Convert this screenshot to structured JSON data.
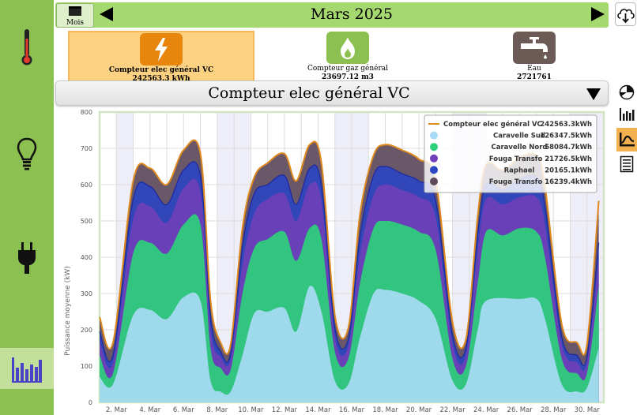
{
  "sidebar": {
    "items": [
      {
        "name": "temperature",
        "icon": "thermometer-icon"
      },
      {
        "name": "lighting",
        "icon": "lightbulb-icon"
      },
      {
        "name": "electricity",
        "icon": "plug-icon"
      },
      {
        "name": "charts",
        "icon": "bar-chart-icon",
        "active": true
      }
    ]
  },
  "header": {
    "period_button_label": "Mois",
    "title": "Mars 2025"
  },
  "meters": [
    {
      "name": "Compteur elec général VC",
      "value": "242563.3 kWh",
      "icon": "lightning-icon",
      "color": "#e8850c",
      "selected": true
    },
    {
      "name": "Compteur gaz général",
      "value": "23697.12 m3",
      "icon": "flame-icon",
      "color": "#8cc152",
      "selected": false
    },
    {
      "name": "Eau",
      "value": "2721761",
      "icon": "faucet-icon",
      "color": "#6b5a55",
      "selected": false
    }
  ],
  "selector": {
    "selected": "Compteur elec général VC"
  },
  "tools": [
    "pie-chart-icon",
    "bar-chart-icon",
    "area-chart-icon",
    "document-icon"
  ],
  "chart_data": {
    "type": "area",
    "stacked": true,
    "ylabel": "Puissance moyenne (kW)",
    "ylim": [
      0,
      800
    ],
    "yticks": [
      0,
      100,
      200,
      300,
      400,
      500,
      600,
      700,
      800
    ],
    "x_day_range": [
      1,
      31
    ],
    "xtick_days": [
      2,
      4,
      6,
      8,
      10,
      12,
      14,
      16,
      18,
      20,
      22,
      24,
      26,
      28,
      30
    ],
    "xtick_labels": [
      "2. Mar",
      "4. Mar",
      "6. Mar",
      "8. Mar",
      "10. Mar",
      "12. Mar",
      "14. Mar",
      "16. Mar",
      "18. Mar",
      "20. Mar",
      "22. Mar",
      "24. Mar",
      "26. Mar",
      "28. Mar",
      "30. Mar"
    ],
    "weekend_bands": [
      [
        2,
        3
      ],
      [
        8,
        10
      ],
      [
        15,
        17
      ],
      [
        22,
        24
      ],
      [
        29,
        31
      ]
    ],
    "grid": true,
    "legend": {
      "placement": "top-right",
      "entries": [
        {
          "name": "Compteur elec général VC",
          "value": "242563.3kWh",
          "color": "#e08a1e",
          "marker": "line"
        },
        {
          "name": "Caravelle Sud",
          "value": "126347.5kWh",
          "color": "#a8daf5",
          "marker": "dot"
        },
        {
          "name": "Caravelle Nord",
          "value": "58084.7kWh",
          "color": "#2dd07a",
          "marker": "dot"
        },
        {
          "name": "Fouga Transfo 2",
          "value": "21726.5kWh",
          "color": "#6f40b8",
          "marker": "dot"
        },
        {
          "name": "Raphael",
          "value": "20165.1kWh",
          "color": "#2c45c0",
          "marker": "dot"
        },
        {
          "name": "Fouga Transfo 1",
          "value": "16239.4kWh",
          "color": "#5d4a5c",
          "marker": "dot"
        }
      ]
    },
    "series_keypoints": [
      {
        "name": "Caravelle Sud",
        "color": "#a8daf5",
        "points": [
          [
            1,
            70
          ],
          [
            1.8,
            50
          ],
          [
            3,
            240
          ],
          [
            4,
            255
          ],
          [
            5,
            230
          ],
          [
            6,
            290
          ],
          [
            7,
            280
          ],
          [
            7.6,
            60
          ],
          [
            8.2,
            30
          ],
          [
            8.8,
            30
          ],
          [
            9.5,
            130
          ],
          [
            10.2,
            245
          ],
          [
            11,
            250
          ],
          [
            12,
            260
          ],
          [
            12.7,
            195
          ],
          [
            13.5,
            320
          ],
          [
            14.2,
            250
          ],
          [
            15,
            60
          ],
          [
            15.8,
            50
          ],
          [
            16.5,
            180
          ],
          [
            17.3,
            300
          ],
          [
            18,
            310
          ],
          [
            19,
            300
          ],
          [
            20,
            280
          ],
          [
            21,
            230
          ],
          [
            22,
            60
          ],
          [
            22.8,
            50
          ],
          [
            23.5,
            200
          ],
          [
            24,
            280
          ],
          [
            26,
            285
          ],
          [
            27,
            285
          ],
          [
            27.5,
            230
          ],
          [
            28.5,
            50
          ],
          [
            29.4,
            30
          ],
          [
            30,
            40
          ],
          [
            30.7,
            150
          ]
        ]
      },
      {
        "name": "Caravelle Nord",
        "color": "#2dd07a",
        "points": [
          [
            1,
            130
          ],
          [
            1.8,
            80
          ],
          [
            3,
            410
          ],
          [
            4,
            440
          ],
          [
            5,
            410
          ],
          [
            6,
            490
          ],
          [
            7,
            490
          ],
          [
            7.6,
            150
          ],
          [
            8.2,
            95
          ],
          [
            8.8,
            90
          ],
          [
            9.5,
            300
          ],
          [
            10.2,
            425
          ],
          [
            11,
            450
          ],
          [
            12,
            470
          ],
          [
            12.7,
            390
          ],
          [
            13.5,
            480
          ],
          [
            14.2,
            450
          ],
          [
            15,
            140
          ],
          [
            15.8,
            120
          ],
          [
            16.5,
            330
          ],
          [
            17.3,
            480
          ],
          [
            18,
            500
          ],
          [
            19,
            490
          ],
          [
            20,
            470
          ],
          [
            21,
            420
          ],
          [
            22,
            120
          ],
          [
            22.8,
            100
          ],
          [
            23.5,
            330
          ],
          [
            24,
            470
          ],
          [
            25,
            460
          ],
          [
            26,
            480
          ],
          [
            27,
            470
          ],
          [
            27.5,
            400
          ],
          [
            28.5,
            120
          ],
          [
            29.4,
            80
          ],
          [
            30,
            80
          ],
          [
            30.7,
            320
          ]
        ]
      },
      {
        "name": "Fouga Transfo 2",
        "color": "#6f40b8",
        "points": [
          [
            1,
            170
          ],
          [
            1.8,
            110
          ],
          [
            3,
            505
          ],
          [
            4,
            540
          ],
          [
            5,
            495
          ],
          [
            6,
            590
          ],
          [
            7,
            580
          ],
          [
            7.6,
            200
          ],
          [
            8.2,
            125
          ],
          [
            8.8,
            120
          ],
          [
            9.5,
            380
          ],
          [
            10.2,
            520
          ],
          [
            11,
            560
          ],
          [
            12,
            575
          ],
          [
            12.7,
            500
          ],
          [
            13.5,
            600
          ],
          [
            14.2,
            555
          ],
          [
            15,
            180
          ],
          [
            15.8,
            155
          ],
          [
            16.5,
            410
          ],
          [
            17.3,
            570
          ],
          [
            18,
            600
          ],
          [
            19,
            585
          ],
          [
            20,
            565
          ],
          [
            21,
            510
          ],
          [
            22,
            160
          ],
          [
            22.8,
            130
          ],
          [
            23.5,
            420
          ],
          [
            24,
            560
          ],
          [
            25,
            545
          ],
          [
            26,
            565
          ],
          [
            27,
            565
          ],
          [
            27.5,
            490
          ],
          [
            28.5,
            160
          ],
          [
            29.4,
            110
          ],
          [
            30,
            110
          ],
          [
            30.7,
            400
          ]
        ]
      },
      {
        "name": "Raphael",
        "color": "#2c45c0",
        "points": [
          [
            1,
            195
          ],
          [
            1.8,
            130
          ],
          [
            3,
            560
          ],
          [
            4,
            595
          ],
          [
            5,
            545
          ],
          [
            6,
            640
          ],
          [
            7,
            625
          ],
          [
            7.6,
            235
          ],
          [
            8.2,
            140
          ],
          [
            8.8,
            135
          ],
          [
            9.5,
            430
          ],
          [
            10.2,
            575
          ],
          [
            11,
            600
          ],
          [
            12,
            625
          ],
          [
            12.7,
            545
          ],
          [
            13.5,
            645
          ],
          [
            14.2,
            600
          ],
          [
            15,
            205
          ],
          [
            15.8,
            175
          ],
          [
            16.5,
            460
          ],
          [
            17.3,
            625
          ],
          [
            18,
            650
          ],
          [
            19,
            630
          ],
          [
            20,
            610
          ],
          [
            21,
            555
          ],
          [
            22,
            185
          ],
          [
            22.8,
            150
          ],
          [
            23.5,
            465
          ],
          [
            24,
            600
          ],
          [
            25,
            585
          ],
          [
            26,
            615
          ],
          [
            27,
            620
          ],
          [
            27.5,
            540
          ],
          [
            28.5,
            180
          ],
          [
            29.4,
            130
          ],
          [
            30,
            125
          ],
          [
            30.7,
            440
          ]
        ]
      },
      {
        "name": "Fouga Transfo 1",
        "color": "#5d4a5c",
        "points": [
          [
            1,
            235
          ],
          [
            1.8,
            165
          ],
          [
            3,
            610
          ],
          [
            4,
            645
          ],
          [
            5,
            600
          ],
          [
            6,
            695
          ],
          [
            7,
            685
          ],
          [
            7.6,
            280
          ],
          [
            8.2,
            165
          ],
          [
            8.8,
            160
          ],
          [
            9.5,
            480
          ],
          [
            10.2,
            620
          ],
          [
            11,
            660
          ],
          [
            12,
            685
          ],
          [
            12.7,
            610
          ],
          [
            13.5,
            710
          ],
          [
            14.2,
            660
          ],
          [
            15,
            240
          ],
          [
            15.8,
            205
          ],
          [
            16.5,
            520
          ],
          [
            17.3,
            680
          ],
          [
            18,
            710
          ],
          [
            19,
            695
          ],
          [
            20,
            670
          ],
          [
            21,
            610
          ],
          [
            22,
            220
          ],
          [
            22.8,
            175
          ],
          [
            23.5,
            515
          ],
          [
            24,
            655
          ],
          [
            25,
            640
          ],
          [
            26,
            675
          ],
          [
            27,
            680
          ],
          [
            27.5,
            595
          ],
          [
            28.5,
            215
          ],
          [
            29.4,
            165
          ],
          [
            30,
            160
          ],
          [
            30.7,
            555
          ]
        ]
      }
    ]
  }
}
